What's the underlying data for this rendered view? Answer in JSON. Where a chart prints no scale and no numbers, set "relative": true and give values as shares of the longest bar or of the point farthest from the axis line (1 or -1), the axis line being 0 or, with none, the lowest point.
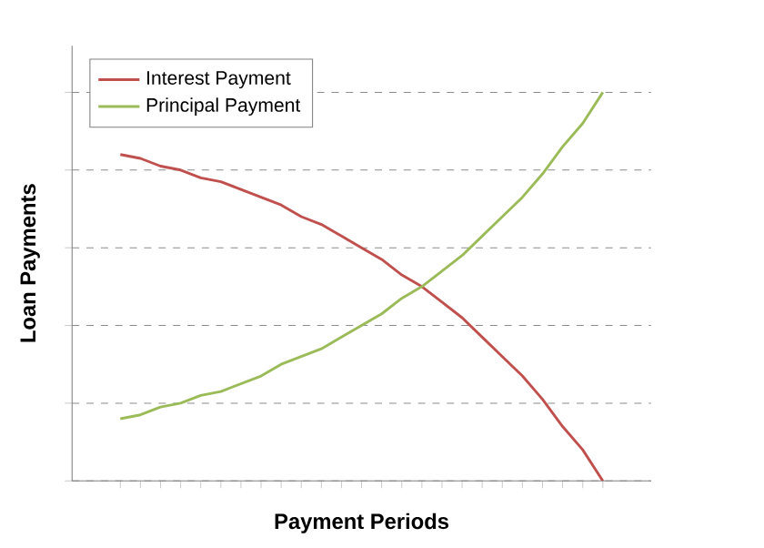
{
  "chart_data": {
    "type": "line",
    "xlabel": "Payment Periods",
    "ylabel": "Loan Payments",
    "relative": true,
    "grid": "y",
    "legend": "top left",
    "marker": "none",
    "line_style": "solid",
    "categories": [
      null,
      null,
      null,
      null,
      null,
      null,
      null,
      null,
      null,
      null,
      null,
      null,
      null,
      null,
      null,
      null,
      null,
      null,
      null,
      null,
      null,
      null,
      null,
      null,
      null
    ],
    "series": [
      {
        "name": "Interest Payment",
        "color": "#c0504d",
        "values": [
          0.84,
          0.83,
          0.81,
          0.8,
          0.78,
          0.77,
          0.75,
          0.73,
          0.71,
          0.68,
          0.66,
          0.63,
          0.6,
          0.57,
          0.53,
          0.5,
          0.46,
          0.42,
          0.37,
          0.32,
          0.27,
          0.21,
          0.14,
          0.08,
          0.0
        ]
      },
      {
        "name": "Principal Payment",
        "color": "#9bbb59",
        "values": [
          0.16,
          0.17,
          0.19,
          0.2,
          0.22,
          0.23,
          0.25,
          0.27,
          0.3,
          0.32,
          0.34,
          0.37,
          0.4,
          0.43,
          0.47,
          0.5,
          0.54,
          0.58,
          0.63,
          0.68,
          0.73,
          0.79,
          0.86,
          0.92,
          1.0
        ]
      }
    ]
  }
}
